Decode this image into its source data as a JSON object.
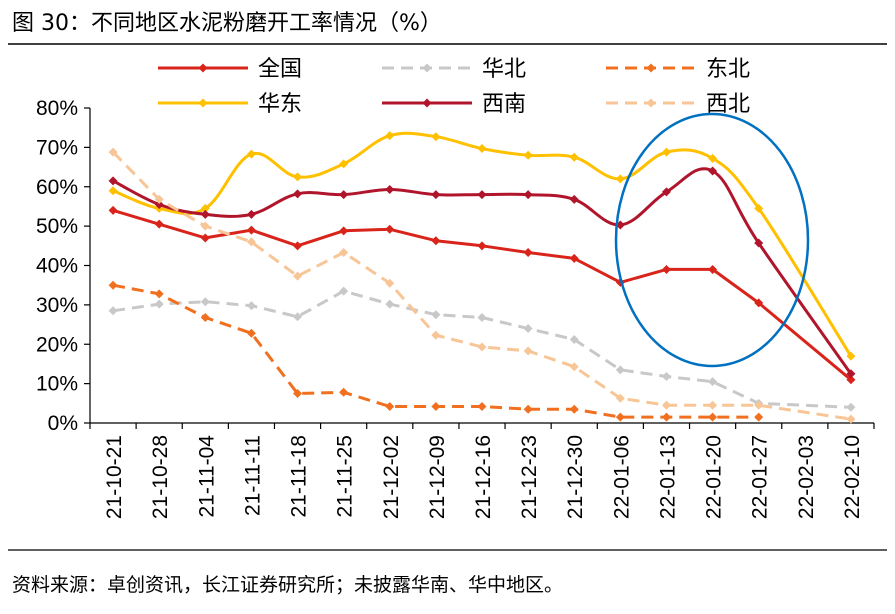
{
  "chart_data": {
    "type": "line",
    "title": "图  30：不同地区水泥粉磨开工率情况（%）",
    "source": "资料来源：卓创资讯，长江证券研究所；未披露华南、华中地区。",
    "xlabel": "",
    "ylabel": "",
    "ylim": [
      0,
      80
    ],
    "yticks": [
      "0%",
      "10%",
      "20%",
      "30%",
      "40%",
      "50%",
      "60%",
      "70%",
      "80%"
    ],
    "ytick_values": [
      0,
      10,
      20,
      30,
      40,
      50,
      60,
      70,
      80
    ],
    "categories": [
      "21-10-21",
      "21-10-28",
      "21-11-04",
      "21-11-11",
      "21-11-18",
      "21-11-25",
      "21-12-02",
      "21-12-09",
      "21-12-16",
      "21-12-23",
      "21-12-30",
      "22-01-06",
      "22-01-13",
      "22-01-20",
      "22-01-27",
      "22-02-03",
      "22-02-10"
    ],
    "grid": false,
    "legend_position": "top",
    "annotation": "blue ellipse highlighting 22-01-13 to 22-01-27",
    "series": [
      {
        "name": "全国",
        "color": "#d9241b",
        "dash": "solid",
        "smooth": false,
        "values": [
          54,
          50.5,
          47,
          49,
          45,
          48.8,
          49.2,
          46.3,
          45,
          43.3,
          41.8,
          35.7,
          39,
          39,
          30.5,
          null,
          11
        ]
      },
      {
        "name": "华北",
        "color": "#c8c8c8",
        "dash": "dash",
        "smooth": false,
        "values": [
          28.5,
          30.2,
          30.8,
          29.8,
          27,
          33.5,
          30.2,
          27.5,
          26.8,
          24,
          21.2,
          13.5,
          11.8,
          10.5,
          5,
          null,
          4
        ]
      },
      {
        "name": "东北",
        "color": "#f07020",
        "dash": "dash",
        "smooth": false,
        "values": [
          35,
          32.8,
          26.8,
          22.8,
          7.5,
          7.8,
          4.2,
          4.2,
          4.2,
          3.5,
          3.5,
          1.5,
          1.5,
          1.5,
          1.5,
          null,
          null
        ]
      },
      {
        "name": "华东",
        "color": "#ffc000",
        "dash": "solid",
        "smooth": true,
        "values": [
          59,
          54.5,
          54.5,
          68.3,
          62.5,
          65.8,
          73,
          72.7,
          69.7,
          68,
          67.5,
          62,
          68.8,
          67.2,
          54.5,
          null,
          17
        ]
      },
      {
        "name": "西南",
        "color": "#b0152c",
        "dash": "solid",
        "smooth": true,
        "values": [
          61.5,
          55.5,
          53,
          53,
          58.2,
          58,
          59.3,
          58,
          58,
          58,
          56.8,
          50.3,
          58.7,
          64,
          45.7,
          null,
          12.5
        ]
      },
      {
        "name": "西北",
        "color": "#f8c596",
        "dash": "dash",
        "smooth": false,
        "values": [
          68.8,
          56.8,
          50,
          46,
          37.3,
          43.3,
          35.5,
          22.3,
          19.3,
          18.3,
          14.3,
          6.3,
          4.5,
          4.5,
          4.5,
          null,
          1
        ]
      }
    ]
  }
}
